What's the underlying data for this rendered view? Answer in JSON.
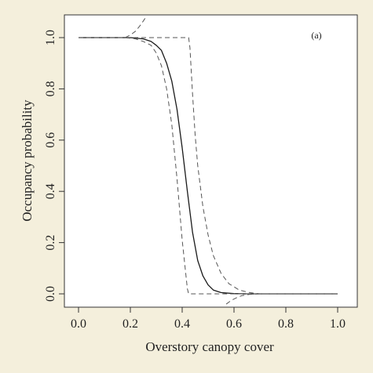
{
  "chart_data": {
    "type": "line",
    "panel_label": "(a)",
    "xlabel": "Overstory canopy cover",
    "ylabel": "Occupancy probability",
    "xlim": [
      0.0,
      1.0
    ],
    "ylim": [
      0.0,
      1.0
    ],
    "xticks": [
      "0.0",
      "0.2",
      "0.4",
      "0.6",
      "0.8",
      "1.0"
    ],
    "yticks": [
      "0.0",
      "0.2",
      "0.4",
      "0.6",
      "0.8",
      "1.0"
    ],
    "grid": false,
    "legend": "none",
    "series": [
      {
        "style": "solid",
        "x": [
          0.0,
          0.2,
          0.25,
          0.28,
          0.3,
          0.32,
          0.34,
          0.36,
          0.38,
          0.4,
          0.42,
          0.44,
          0.46,
          0.48,
          0.5,
          0.52,
          0.55,
          0.6,
          0.65,
          0.7,
          1.0
        ],
        "y": [
          1.0,
          1.0,
          0.995,
          0.985,
          0.97,
          0.95,
          0.9,
          0.83,
          0.72,
          0.57,
          0.4,
          0.24,
          0.13,
          0.07,
          0.035,
          0.015,
          0.005,
          0.001,
          0.0,
          0.0,
          0.0
        ]
      },
      {
        "style": "dashed",
        "x": [
          0.0,
          0.18,
          0.22,
          0.25,
          0.28,
          0.3,
          0.32,
          0.34,
          0.36,
          0.38,
          0.4,
          0.42,
          0.425,
          0.43,
          0.44,
          0.46,
          0.48,
          0.5,
          0.53,
          0.56,
          0.6,
          0.65,
          0.7,
          1.0
        ],
        "y": [
          1.0,
          1.0,
          0.995,
          0.985,
          0.97,
          0.94,
          0.89,
          0.8,
          0.66,
          0.45,
          0.21,
          0.02,
          0.0,
          0.0,
          0.0,
          0.0,
          0.0,
          0.0,
          0.0,
          0.0,
          0.0,
          0.0,
          0.0,
          0.0
        ]
      },
      {
        "style": "dashed",
        "x": [
          0.0,
          0.4,
          0.425,
          0.43,
          0.44,
          0.45,
          0.46,
          0.48,
          0.5,
          0.52,
          0.55,
          0.58,
          0.62,
          0.66,
          0.7,
          1.0
        ],
        "y": [
          1.0,
          1.0,
          1.0,
          0.96,
          0.78,
          0.62,
          0.5,
          0.34,
          0.23,
          0.15,
          0.08,
          0.04,
          0.015,
          0.005,
          0.0,
          0.0
        ]
      },
      {
        "style": "dashed",
        "x": [
          0.18,
          0.2,
          0.22,
          0.24,
          0.26
        ],
        "y": [
          1.0,
          1.01,
          1.025,
          1.05,
          1.08
        ]
      },
      {
        "style": "dashed",
        "x": [
          0.57,
          0.59,
          0.61,
          0.63,
          0.66,
          0.7
        ],
        "y": [
          -0.04,
          -0.025,
          -0.015,
          -0.007,
          -0.002,
          0.0
        ]
      }
    ]
  }
}
